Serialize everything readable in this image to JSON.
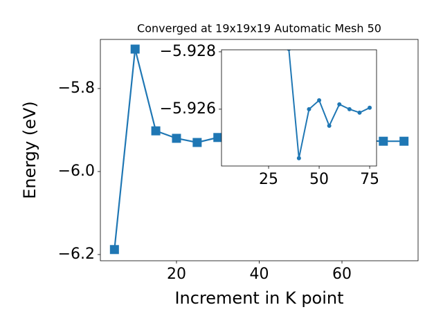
{
  "chart_data": [
    {
      "type": "line",
      "title": "Converged at 19x19x19 Automatic Mesh 50",
      "xlabel": "Increment in K point",
      "ylabel": "Energy (eV)",
      "x": [
        5,
        10,
        15,
        20,
        25,
        30,
        70,
        75
      ],
      "values": [
        -6.188,
        -5.705,
        -5.902,
        -5.92,
        -5.93,
        -5.918,
        -5.927,
        -5.927
      ],
      "color": "#1f77b4",
      "marker": "square",
      "xlim": [
        1.6,
        78.4
      ],
      "ylim": [
        -6.215,
        -5.6817
      ],
      "xticks": [
        20,
        40,
        60
      ],
      "yticks": [
        {
          "value": -5.8,
          "label": "−5.8"
        },
        {
          "value": -6.0,
          "label": "−6.0"
        },
        {
          "value": -6.2,
          "label": "−6.2"
        }
      ]
    },
    {
      "type": "line",
      "x": [
        35,
        40,
        45,
        50,
        55,
        60,
        65,
        70,
        75
      ],
      "values": [
        -5.9281,
        -5.92429,
        -5.926,
        -5.92631,
        -5.92542,
        -5.92617,
        -5.926,
        -5.92588,
        -5.92605
      ],
      "color": "#1f77b4",
      "marker": "circle",
      "y_inverted": true,
      "xlim": [
        1.7,
        78.4
      ],
      "ylim": [
        -5.92807,
        -5.92402
      ],
      "xticks": [
        25,
        50,
        75
      ],
      "yticks": [
        {
          "value": -5.928,
          "label": "−5.928"
        },
        {
          "value": -5.926,
          "label": "−5.926"
        }
      ]
    }
  ]
}
